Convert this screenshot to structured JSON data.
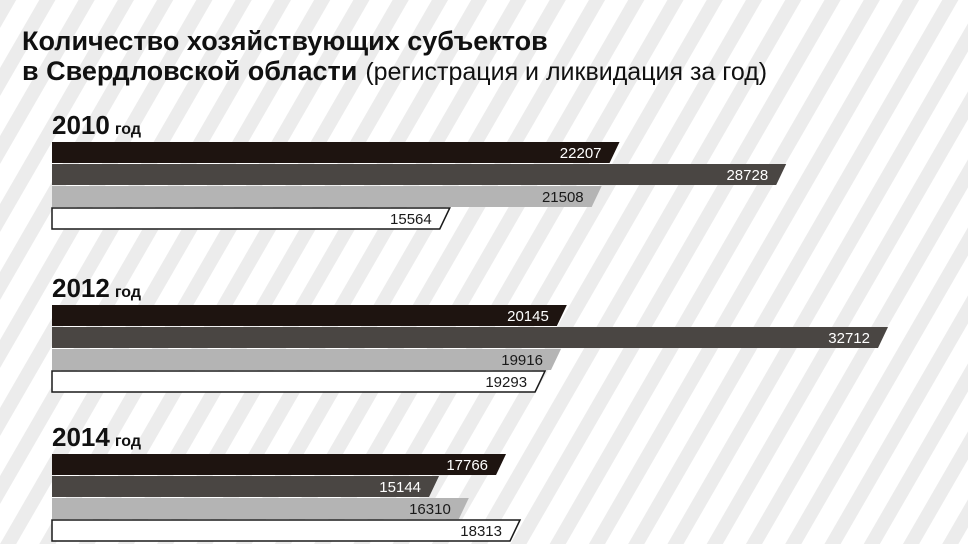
{
  "chart_data": {
    "type": "hbar-grouped",
    "title": [
      "Количество хозяйствующих субъектов",
      "в Свердловской области"
    ],
    "subtitle": "(регистрация и ликвидация за год)",
    "categories": [
      "2010 год",
      "2012 год",
      "2014 год"
    ],
    "series": [
      {
        "color": "#1e1410",
        "values": [
          22207,
          20145,
          17766
        ]
      },
      {
        "color": "#4a4643",
        "values": [
          28728,
          32712,
          15144
        ]
      },
      {
        "color": "#b4b4b4",
        "values": [
          21508,
          19916,
          16310
        ]
      },
      {
        "color": "#ffffff",
        "values": [
          15564,
          19293,
          18313
        ]
      }
    ]
  }
}
